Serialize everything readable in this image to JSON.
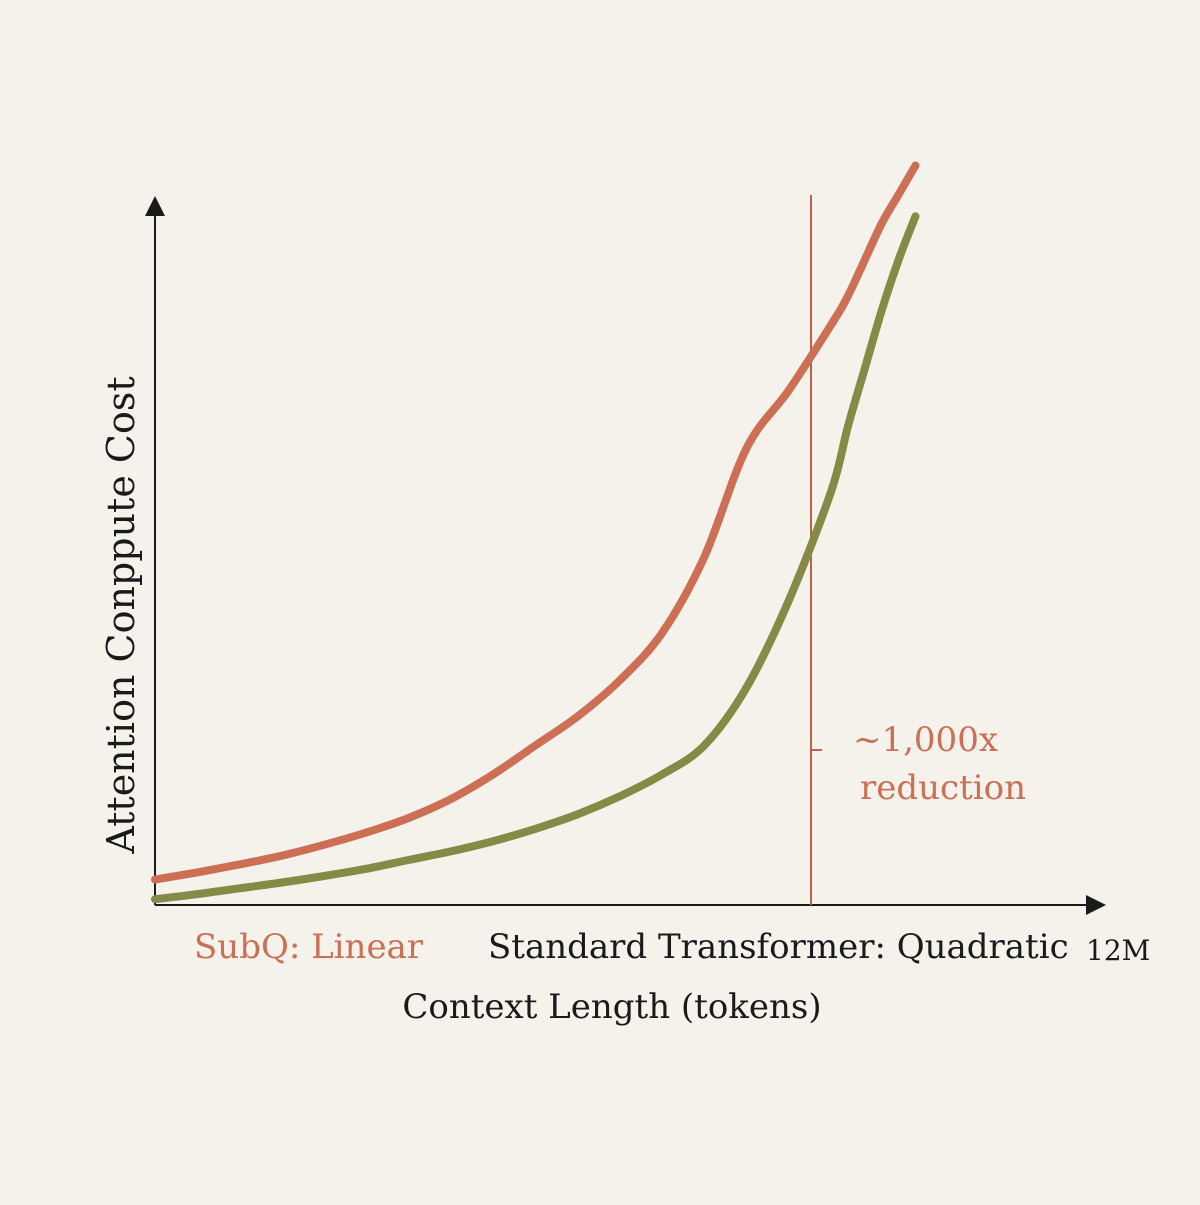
{
  "chart_data": {
    "type": "line",
    "title": "",
    "xlabel": "Context Length (tokens)",
    "ylabel": "Attention Conppute Cost",
    "x_tick_labels": [
      "12M"
    ],
    "grid": false,
    "legend_placement": "bottom-left",
    "colors": {
      "background": "#f4f2ea",
      "axis": "#1a1a1a",
      "subq": "#cd6f55",
      "standard": "#858a47",
      "marker": "#c0604a",
      "annotation": "#cd6f55"
    },
    "series": [
      {
        "name": "SubQ: Linear",
        "color": "#cd6f55",
        "x": [
          0,
          0.05,
          0.1,
          0.15,
          0.2,
          0.25,
          0.3,
          0.35,
          0.4,
          0.45,
          0.5,
          0.55,
          0.6,
          0.65,
          0.7,
          0.75,
          0.8,
          0.82,
          0.84,
          0.86,
          0.88,
          0.9
        ],
        "y": [
          0.035,
          0.045,
          0.056,
          0.068,
          0.083,
          0.1,
          0.12,
          0.146,
          0.18,
          0.22,
          0.26,
          0.31,
          0.375,
          0.48,
          0.63,
          0.71,
          0.8,
          0.84,
          0.89,
          0.94,
          0.98,
          1.02
        ]
      },
      {
        "name": "Standard Transformer: Quadratic",
        "color": "#858a47",
        "x": [
          0,
          0.05,
          0.1,
          0.15,
          0.2,
          0.25,
          0.3,
          0.35,
          0.4,
          0.45,
          0.5,
          0.55,
          0.6,
          0.65,
          0.7,
          0.75,
          0.8,
          0.82,
          0.84,
          0.86,
          0.88,
          0.9
        ],
        "y": [
          0.008,
          0.015,
          0.023,
          0.031,
          0.04,
          0.05,
          0.062,
          0.074,
          0.088,
          0.105,
          0.125,
          0.15,
          0.18,
          0.22,
          0.3,
          0.42,
          0.57,
          0.66,
          0.74,
          0.82,
          0.89,
          0.95
        ]
      }
    ],
    "annotation": {
      "text_line1": "~1,000x",
      "text_line2": "reduction"
    }
  }
}
